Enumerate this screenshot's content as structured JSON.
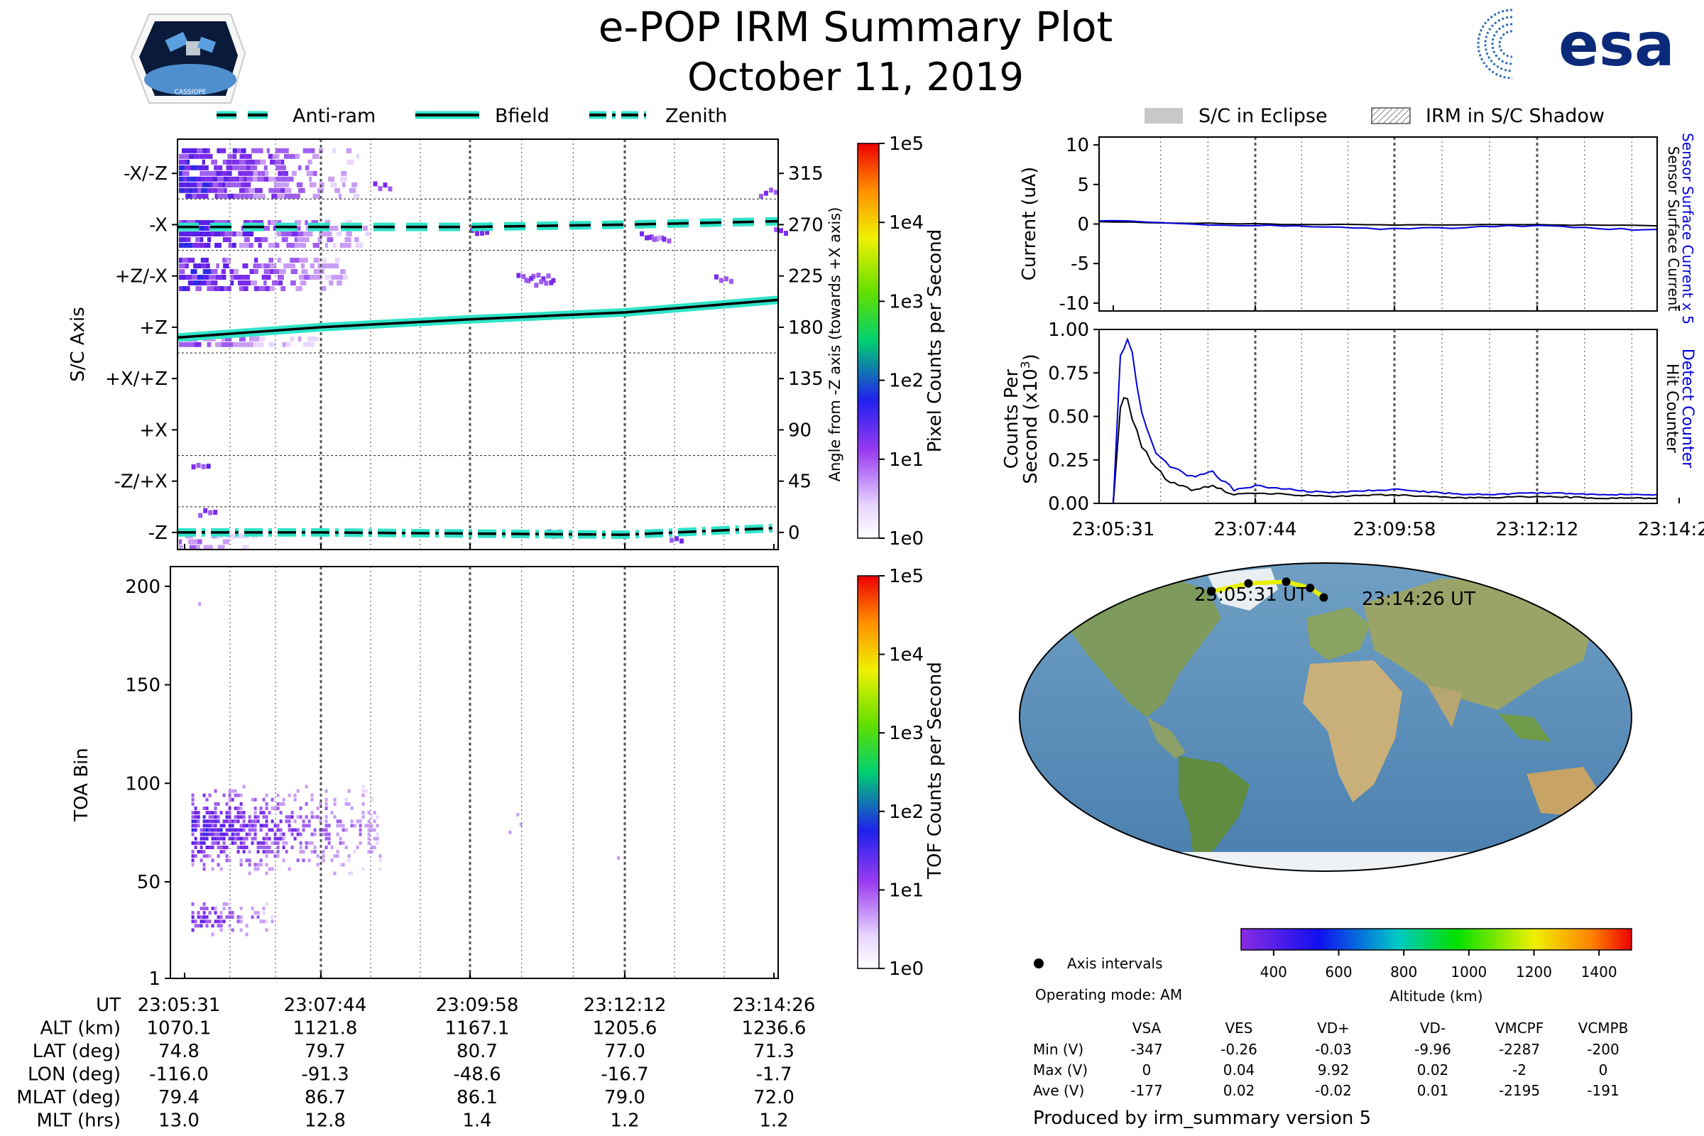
{
  "header": {
    "title": "e-POP IRM Summary Plot",
    "date": "October 11, 2019",
    "left_logo_text": "CASSIOPE",
    "right_logo_text": "esa"
  },
  "time_ticks": [
    "23:05:31",
    "23:07:44",
    "23:09:58",
    "23:12:12",
    "23:14:26"
  ],
  "legends": {
    "left": [
      "Anti-ram",
      "Bfield",
      "Zenith"
    ],
    "right": [
      "S/C in Eclipse",
      "IRM in S/C Shadow"
    ],
    "map": "Axis intervals",
    "colors": {
      "line": "#000000",
      "glow": "#2fe3c8",
      "eclipse": "#c8c8c8",
      "blue": "#0000dd"
    }
  },
  "chart_data": [
    {
      "id": "pixel",
      "type": "heatmap",
      "ylabel": "S/C Axis",
      "y2label": "Angle from -Z axis (towards +X axis)",
      "axis_labels": [
        "-X/-Z",
        "-X",
        "+Z/-X",
        "+Z",
        "+X/+Z",
        "+X",
        "-Z/+X",
        "-Z"
      ],
      "angle_ticks": [
        315,
        270,
        225,
        180,
        135,
        90,
        45,
        0
      ],
      "ylim": [
        -15,
        345
      ],
      "colorbar": {
        "label": "Pixel Counts per Second",
        "ticks": [
          "1e0",
          "1e1",
          "1e2",
          "1e3",
          "1e4",
          "1e5"
        ]
      },
      "series": [
        {
          "name": "Anti-ram",
          "style": "dashed",
          "x": [
            0,
            1,
            2,
            3,
            4
          ],
          "y": [
            268,
            268,
            268,
            270,
            273
          ]
        },
        {
          "name": "Bfield",
          "style": "solid",
          "x": [
            0,
            1,
            2,
            3,
            4
          ],
          "y": [
            171,
            180,
            187,
            193,
            204
          ]
        },
        {
          "name": "Zenith",
          "style": "dashdot",
          "x": [
            0,
            1,
            2,
            3,
            4
          ],
          "y": [
            0,
            0,
            -1,
            -2,
            4
          ]
        }
      ]
    },
    {
      "id": "toa",
      "type": "heatmap",
      "ylabel": "TOA Bin",
      "yticks": [
        1,
        50,
        100,
        150,
        200
      ],
      "ylim": [
        1,
        210
      ],
      "colorbar": {
        "label": "TOF Counts per Second",
        "ticks": [
          "1e0",
          "1e1",
          "1e2",
          "1e3",
          "1e4",
          "1e5"
        ]
      }
    },
    {
      "id": "current",
      "type": "line",
      "ylabel": "Current (uA)",
      "yticks": [
        10,
        5,
        0,
        -5,
        -10
      ],
      "ylim": [
        -11,
        11
      ],
      "right_labels": [
        "Sensor Surface Current x 5",
        "Sensor Surface Current"
      ],
      "series": [
        {
          "name": "Sensor Surface Current",
          "color": "#000000",
          "x": [
            0,
            1,
            2,
            3,
            4
          ],
          "y": [
            0.3,
            0.0,
            -0.1,
            -0.1,
            -0.2
          ]
        },
        {
          "name": "Sensor Surface Current x 5",
          "color": "#0000dd",
          "x": [
            0,
            1,
            2,
            3,
            4
          ],
          "y": [
            0.4,
            -0.2,
            -0.6,
            -0.2,
            -0.8
          ]
        }
      ]
    },
    {
      "id": "counts",
      "type": "line",
      "ylabel": "Counts Per",
      "ylabel2": "Second (x10",
      "ylabel_exp": "3",
      "yticks": [
        "1.00",
        "0.75",
        "0.50",
        "0.25",
        "0.00"
      ],
      "ylim": [
        0,
        1.0
      ],
      "right_labels": [
        "Detect Counter",
        "Hit Counter"
      ],
      "series": [
        {
          "name": "Hit Counter",
          "color": "#000000",
          "x": [
            0,
            0.05,
            0.1,
            0.2,
            0.3,
            0.4,
            0.55,
            0.7,
            0.85,
            1.0,
            1.5,
            2.0,
            2.5,
            3.0,
            3.5,
            4.0,
            4.4
          ],
          "y": [
            0,
            0.55,
            0.6,
            0.35,
            0.2,
            0.12,
            0.08,
            0.1,
            0.05,
            0.06,
            0.04,
            0.05,
            0.03,
            0.04,
            0.03,
            0.03,
            0.03
          ]
        },
        {
          "name": "Detect Counter",
          "color": "#0000dd",
          "x": [
            0,
            0.05,
            0.1,
            0.2,
            0.3,
            0.4,
            0.55,
            0.7,
            0.85,
            1.0,
            1.5,
            2.0,
            2.5,
            3.0,
            3.5,
            4.0,
            4.4
          ],
          "y": [
            0,
            0.85,
            0.95,
            0.55,
            0.3,
            0.22,
            0.15,
            0.18,
            0.08,
            0.1,
            0.06,
            0.08,
            0.05,
            0.06,
            0.05,
            0.05,
            0.05
          ]
        }
      ]
    },
    {
      "id": "map",
      "type": "scatter",
      "start_label": "23:05:31 UT",
      "end_label": "23:14:26 UT",
      "colorbar": {
        "label": "Altitude (km)",
        "ticks": [
          400,
          600,
          800,
          1000,
          1200,
          1400
        ],
        "range": [
          300,
          1500
        ]
      },
      "points": [
        {
          "lon": -116.0,
          "lat": 74.8
        },
        {
          "lon": -91.3,
          "lat": 79.7
        },
        {
          "lon": -48.6,
          "lat": 80.7
        },
        {
          "lon": -16.7,
          "lat": 77.0
        },
        {
          "lon": -1.7,
          "lat": 71.3
        }
      ]
    }
  ],
  "ephemeris": {
    "rows": [
      {
        "label": "UT",
        "values": [
          "23:05:31",
          "23:07:44",
          "23:09:58",
          "23:12:12",
          "23:14:26"
        ]
      },
      {
        "label": "ALT (km)",
        "values": [
          "1070.1",
          "1121.8",
          "1167.1",
          "1205.6",
          "1236.6"
        ]
      },
      {
        "label": "LAT (deg)",
        "values": [
          "74.8",
          "79.7",
          "80.7",
          "77.0",
          "71.3"
        ]
      },
      {
        "label": "LON (deg)",
        "values": [
          "-116.0",
          "-91.3",
          "-48.6",
          "-16.7",
          "-1.7"
        ]
      },
      {
        "label": "MLAT (deg)",
        "values": [
          "79.4",
          "86.7",
          "86.1",
          "79.0",
          "72.0"
        ]
      },
      {
        "label": "MLT (hrs)",
        "values": [
          "13.0",
          "12.8",
          "1.4",
          "1.2",
          "1.2"
        ]
      }
    ]
  },
  "voltages": {
    "mode": "Operating mode: AM",
    "headers": [
      "VSA",
      "VES",
      "VD+",
      "VD-",
      "VMCPF",
      "VCMPB"
    ],
    "rows": [
      {
        "label": "Min (V)",
        "values": [
          "-347",
          "-0.26",
          "-0.03",
          "-9.96",
          "-2287",
          "-200"
        ]
      },
      {
        "label": "Max (V)",
        "values": [
          "0",
          "0.04",
          "9.92",
          "0.02",
          "-2",
          "0"
        ]
      },
      {
        "label": "Ave (V)",
        "values": [
          "-177",
          "0.02",
          "-0.02",
          "0.01",
          "-2195",
          "-191"
        ]
      }
    ]
  },
  "footer": "Produced by irm_summary version 5"
}
